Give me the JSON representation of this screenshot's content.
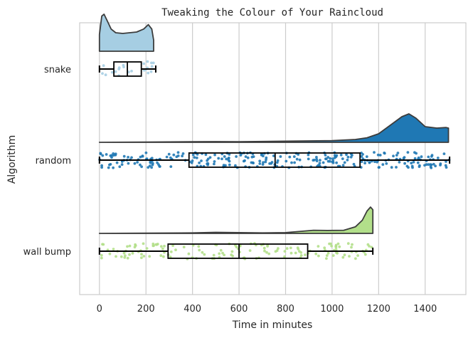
{
  "chart_data": {
    "type": "raincloud",
    "title": "Tweaking the Colour of Your Raincloud",
    "xlabel": "Time in minutes",
    "ylabel": "Algorithm",
    "xlim": [
      -85,
      1575
    ],
    "xticks": [
      0,
      200,
      400,
      600,
      800,
      1000,
      1200,
      1400
    ],
    "grid": "vertical",
    "categories": [
      "snake",
      "random",
      "wall bump"
    ],
    "series": [
      {
        "category": "snake",
        "color": "#a6cee3",
        "box": {
          "whisker_low": 0,
          "q1": 62,
          "median": 120,
          "q3": 180,
          "whisker_high": 242
        },
        "density": [
          [
            0,
            0.45
          ],
          [
            10,
            0.95
          ],
          [
            20,
            1.0
          ],
          [
            35,
            0.8
          ],
          [
            50,
            0.6
          ],
          [
            70,
            0.5
          ],
          [
            100,
            0.48
          ],
          [
            130,
            0.5
          ],
          [
            160,
            0.52
          ],
          [
            190,
            0.6
          ],
          [
            210,
            0.72
          ],
          [
            225,
            0.6
          ],
          [
            233,
            0.3
          ]
        ],
        "points": {
          "count": 22,
          "min": 0,
          "max": 240
        }
      },
      {
        "category": "random",
        "color": "#1f78b4",
        "box": {
          "whisker_low": 0,
          "q1": 385,
          "median": 755,
          "q3": 1120,
          "whisker_high": 1505
        },
        "density": [
          [
            0,
            0.0
          ],
          [
            200,
            0.01
          ],
          [
            400,
            0.02
          ],
          [
            500,
            0.025
          ],
          [
            600,
            0.02
          ],
          [
            800,
            0.04
          ],
          [
            1000,
            0.06
          ],
          [
            1100,
            0.1
          ],
          [
            1150,
            0.16
          ],
          [
            1200,
            0.3
          ],
          [
            1250,
            0.6
          ],
          [
            1300,
            0.9
          ],
          [
            1330,
            1.0
          ],
          [
            1360,
            0.85
          ],
          [
            1400,
            0.55
          ],
          [
            1450,
            0.5
          ],
          [
            1490,
            0.52
          ],
          [
            1500,
            0.5
          ]
        ],
        "points": {
          "count": 300,
          "min": 0,
          "max": 1505
        }
      },
      {
        "category": "wall bump",
        "color": "#b2df8a",
        "box": {
          "whisker_low": 0,
          "q1": 295,
          "median": 600,
          "q3": 895,
          "whisker_high": 1175
        },
        "density": [
          [
            0,
            0.0
          ],
          [
            200,
            0.01
          ],
          [
            400,
            0.02
          ],
          [
            500,
            0.04
          ],
          [
            600,
            0.03
          ],
          [
            700,
            0.02
          ],
          [
            800,
            0.03
          ],
          [
            870,
            0.08
          ],
          [
            920,
            0.12
          ],
          [
            980,
            0.11
          ],
          [
            1050,
            0.12
          ],
          [
            1100,
            0.25
          ],
          [
            1130,
            0.5
          ],
          [
            1150,
            0.85
          ],
          [
            1165,
            1.0
          ],
          [
            1175,
            0.9
          ]
        ],
        "points": {
          "count": 150,
          "min": 0,
          "max": 1175
        }
      }
    ]
  }
}
